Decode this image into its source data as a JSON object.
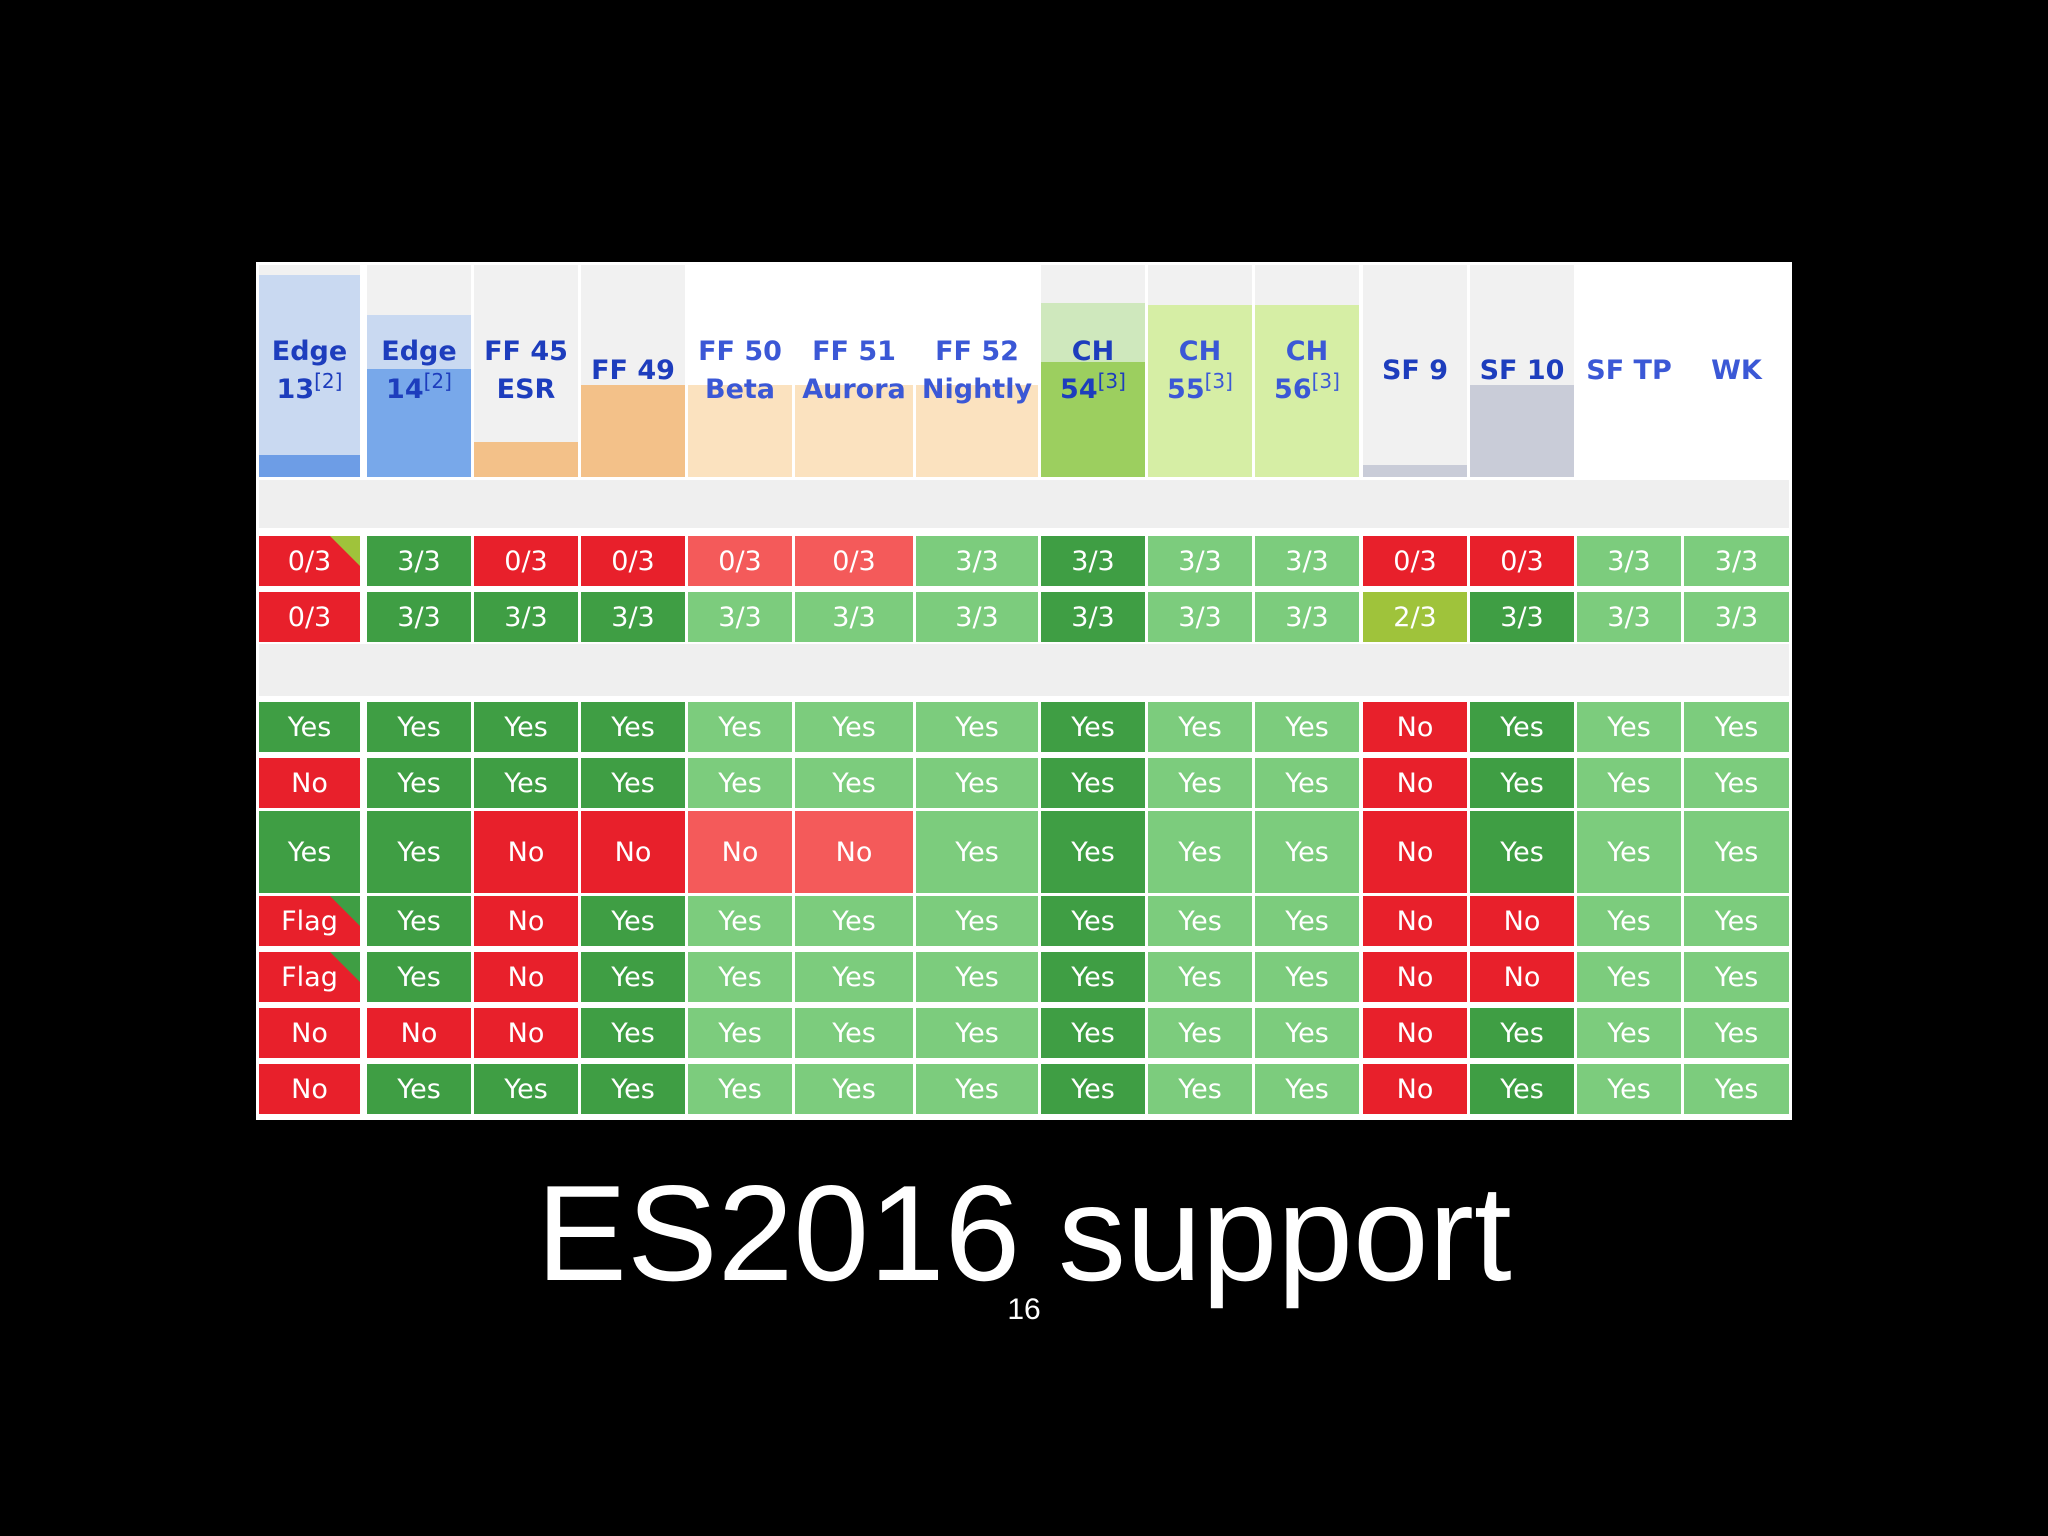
{
  "slide": {
    "title": "ES2016 support",
    "page_number": "16"
  },
  "colors": {
    "red": "#e8202b",
    "light_red": "#f45a5a",
    "dark_green": "#3f9e44",
    "light_green": "#7ccc7d",
    "yellow_green": "#9fc33b",
    "edge_text": "#1d3dbd",
    "ff_text": "#3b58d6",
    "ch_text": "#2a45c8",
    "sf_text": "#1d3dbd"
  },
  "browsers": [
    {
      "name": "Edge",
      "version": "13",
      "note": "[2]",
      "usage_color": "#6d9de6",
      "bg": "#c9d9f1",
      "text_color": "#1d3dbd"
    },
    {
      "name": "Edge",
      "version": "14",
      "note": "[2]",
      "usage_color": "#78a8ea",
      "bg": "#c9d9f1",
      "text_color": "#1d3dbd"
    },
    {
      "name": "FF 45",
      "version": "ESR",
      "note": "",
      "usage_color": "#f3c189",
      "bg": "#f1f1f1",
      "text_color": "#1d3dbd"
    },
    {
      "name": "FF 49",
      "version": "",
      "note": "",
      "usage_color": "#f3c189",
      "bg": "#f1f1f1",
      "text_color": "#1d3dbd"
    },
    {
      "name": "FF 50",
      "version": "Beta",
      "note": "",
      "usage_color": "#fbe2bf",
      "bg": "#ffffff",
      "text_color": "#3b58d6"
    },
    {
      "name": "FF 51",
      "version": "Aurora",
      "note": "",
      "usage_color": "#fbe2bf",
      "bg": "#ffffff",
      "text_color": "#3b58d6"
    },
    {
      "name": "FF 52",
      "version": "Nightly",
      "note": "",
      "usage_color": "#fbe2bf",
      "bg": "#ffffff",
      "text_color": "#3b58d6"
    },
    {
      "name": "CH",
      "version": "54",
      "note": "[3]",
      "usage_color": "#9ccf5f",
      "bg": "#cfe8bd",
      "text_color": "#1d3dbd"
    },
    {
      "name": "CH",
      "version": "55",
      "note": "[3]",
      "usage_color": "#d6eea5",
      "bg": "#d6eea5",
      "text_color": "#3b58d6"
    },
    {
      "name": "CH",
      "version": "56",
      "note": "[3]",
      "usage_color": "#d6eea5",
      "bg": "#d6eea5",
      "text_color": "#3b58d6"
    },
    {
      "name": "SF 9",
      "version": "",
      "note": "",
      "usage_color": "#c9ccd8",
      "bg": "#f1f1f1",
      "text_color": "#1d3dbd"
    },
    {
      "name": "SF 10",
      "version": "",
      "note": "",
      "usage_color": "#c9ccd8",
      "bg": "#f1f1f1",
      "text_color": "#1d3dbd"
    },
    {
      "name": "SF TP",
      "version": "",
      "note": "",
      "usage_color": "#e2e4f0",
      "bg": "#ffffff",
      "text_color": "#3b58d6"
    },
    {
      "name": "WK",
      "version": "",
      "note": "",
      "usage_color": "#e2e4f0",
      "bg": "#ffffff",
      "text_color": "#3b58d6"
    }
  ],
  "rows": [
    {
      "cells": [
        {
          "t": "0/3",
          "c": "red",
          "tri": "yellow"
        },
        {
          "t": "3/3",
          "c": "dark_green"
        },
        {
          "t": "0/3",
          "c": "red"
        },
        {
          "t": "0/3",
          "c": "red"
        },
        {
          "t": "0/3",
          "c": "light_red"
        },
        {
          "t": "0/3",
          "c": "light_red"
        },
        {
          "t": "3/3",
          "c": "light_green"
        },
        {
          "t": "3/3",
          "c": "dark_green"
        },
        {
          "t": "3/3",
          "c": "light_green"
        },
        {
          "t": "3/3",
          "c": "light_green"
        },
        {
          "t": "0/3",
          "c": "red"
        },
        {
          "t": "0/3",
          "c": "red"
        },
        {
          "t": "3/3",
          "c": "light_green"
        },
        {
          "t": "3/3",
          "c": "light_green"
        }
      ]
    },
    {
      "cells": [
        {
          "t": "0/3",
          "c": "red"
        },
        {
          "t": "3/3",
          "c": "dark_green"
        },
        {
          "t": "3/3",
          "c": "dark_green"
        },
        {
          "t": "3/3",
          "c": "dark_green"
        },
        {
          "t": "3/3",
          "c": "light_green"
        },
        {
          "t": "3/3",
          "c": "light_green"
        },
        {
          "t": "3/3",
          "c": "light_green"
        },
        {
          "t": "3/3",
          "c": "dark_green"
        },
        {
          "t": "3/3",
          "c": "light_green"
        },
        {
          "t": "3/3",
          "c": "light_green"
        },
        {
          "t": "2/3",
          "c": "yellow_green"
        },
        {
          "t": "3/3",
          "c": "dark_green"
        },
        {
          "t": "3/3",
          "c": "light_green"
        },
        {
          "t": "3/3",
          "c": "light_green"
        }
      ]
    },
    {
      "cells": [
        {
          "t": "Yes",
          "c": "dark_green"
        },
        {
          "t": "Yes",
          "c": "dark_green"
        },
        {
          "t": "Yes",
          "c": "dark_green"
        },
        {
          "t": "Yes",
          "c": "dark_green"
        },
        {
          "t": "Yes",
          "c": "light_green"
        },
        {
          "t": "Yes",
          "c": "light_green"
        },
        {
          "t": "Yes",
          "c": "light_green"
        },
        {
          "t": "Yes",
          "c": "dark_green"
        },
        {
          "t": "Yes",
          "c": "light_green"
        },
        {
          "t": "Yes",
          "c": "light_green"
        },
        {
          "t": "No",
          "c": "red"
        },
        {
          "t": "Yes",
          "c": "dark_green"
        },
        {
          "t": "Yes",
          "c": "light_green"
        },
        {
          "t": "Yes",
          "c": "light_green"
        }
      ]
    },
    {
      "cells": [
        {
          "t": "No",
          "c": "red"
        },
        {
          "t": "Yes",
          "c": "dark_green"
        },
        {
          "t": "Yes",
          "c": "dark_green"
        },
        {
          "t": "Yes",
          "c": "dark_green"
        },
        {
          "t": "Yes",
          "c": "light_green"
        },
        {
          "t": "Yes",
          "c": "light_green"
        },
        {
          "t": "Yes",
          "c": "light_green"
        },
        {
          "t": "Yes",
          "c": "dark_green"
        },
        {
          "t": "Yes",
          "c": "light_green"
        },
        {
          "t": "Yes",
          "c": "light_green"
        },
        {
          "t": "No",
          "c": "red"
        },
        {
          "t": "Yes",
          "c": "dark_green"
        },
        {
          "t": "Yes",
          "c": "light_green"
        },
        {
          "t": "Yes",
          "c": "light_green"
        }
      ]
    },
    {
      "cells": [
        {
          "t": "Yes",
          "c": "dark_green"
        },
        {
          "t": "Yes",
          "c": "dark_green"
        },
        {
          "t": "No",
          "c": "red"
        },
        {
          "t": "No",
          "c": "red"
        },
        {
          "t": "No",
          "c": "light_red"
        },
        {
          "t": "No",
          "c": "light_red"
        },
        {
          "t": "Yes",
          "c": "light_green"
        },
        {
          "t": "Yes",
          "c": "dark_green"
        },
        {
          "t": "Yes",
          "c": "light_green"
        },
        {
          "t": "Yes",
          "c": "light_green"
        },
        {
          "t": "No",
          "c": "red"
        },
        {
          "t": "Yes",
          "c": "dark_green"
        },
        {
          "t": "Yes",
          "c": "light_green"
        },
        {
          "t": "Yes",
          "c": "light_green"
        }
      ]
    },
    {
      "cells": [
        {
          "t": "Flag",
          "c": "red",
          "tri": "green"
        },
        {
          "t": "Yes",
          "c": "dark_green"
        },
        {
          "t": "No",
          "c": "red"
        },
        {
          "t": "Yes",
          "c": "dark_green"
        },
        {
          "t": "Yes",
          "c": "light_green"
        },
        {
          "t": "Yes",
          "c": "light_green"
        },
        {
          "t": "Yes",
          "c": "light_green"
        },
        {
          "t": "Yes",
          "c": "dark_green"
        },
        {
          "t": "Yes",
          "c": "light_green"
        },
        {
          "t": "Yes",
          "c": "light_green"
        },
        {
          "t": "No",
          "c": "red"
        },
        {
          "t": "No",
          "c": "red"
        },
        {
          "t": "Yes",
          "c": "light_green"
        },
        {
          "t": "Yes",
          "c": "light_green"
        }
      ]
    },
    {
      "cells": [
        {
          "t": "Flag",
          "c": "red",
          "tri": "green"
        },
        {
          "t": "Yes",
          "c": "dark_green"
        },
        {
          "t": "No",
          "c": "red"
        },
        {
          "t": "Yes",
          "c": "dark_green"
        },
        {
          "t": "Yes",
          "c": "light_green"
        },
        {
          "t": "Yes",
          "c": "light_green"
        },
        {
          "t": "Yes",
          "c": "light_green"
        },
        {
          "t": "Yes",
          "c": "dark_green"
        },
        {
          "t": "Yes",
          "c": "light_green"
        },
        {
          "t": "Yes",
          "c": "light_green"
        },
        {
          "t": "No",
          "c": "red"
        },
        {
          "t": "No",
          "c": "red"
        },
        {
          "t": "Yes",
          "c": "light_green"
        },
        {
          "t": "Yes",
          "c": "light_green"
        }
      ]
    },
    {
      "cells": [
        {
          "t": "No",
          "c": "red"
        },
        {
          "t": "No",
          "c": "red"
        },
        {
          "t": "No",
          "c": "red"
        },
        {
          "t": "Yes",
          "c": "dark_green"
        },
        {
          "t": "Yes",
          "c": "light_green"
        },
        {
          "t": "Yes",
          "c": "light_green"
        },
        {
          "t": "Yes",
          "c": "light_green"
        },
        {
          "t": "Yes",
          "c": "dark_green"
        },
        {
          "t": "Yes",
          "c": "light_green"
        },
        {
          "t": "Yes",
          "c": "light_green"
        },
        {
          "t": "No",
          "c": "red"
        },
        {
          "t": "Yes",
          "c": "dark_green"
        },
        {
          "t": "Yes",
          "c": "light_green"
        },
        {
          "t": "Yes",
          "c": "light_green"
        }
      ]
    },
    {
      "cells": [
        {
          "t": "No",
          "c": "red"
        },
        {
          "t": "Yes",
          "c": "dark_green"
        },
        {
          "t": "Yes",
          "c": "dark_green"
        },
        {
          "t": "Yes",
          "c": "dark_green"
        },
        {
          "t": "Yes",
          "c": "light_green"
        },
        {
          "t": "Yes",
          "c": "light_green"
        },
        {
          "t": "Yes",
          "c": "light_green"
        },
        {
          "t": "Yes",
          "c": "dark_green"
        },
        {
          "t": "Yes",
          "c": "light_green"
        },
        {
          "t": "Yes",
          "c": "light_green"
        },
        {
          "t": "No",
          "c": "red"
        },
        {
          "t": "Yes",
          "c": "dark_green"
        },
        {
          "t": "Yes",
          "c": "light_green"
        },
        {
          "t": "Yes",
          "c": "light_green"
        }
      ]
    }
  ]
}
